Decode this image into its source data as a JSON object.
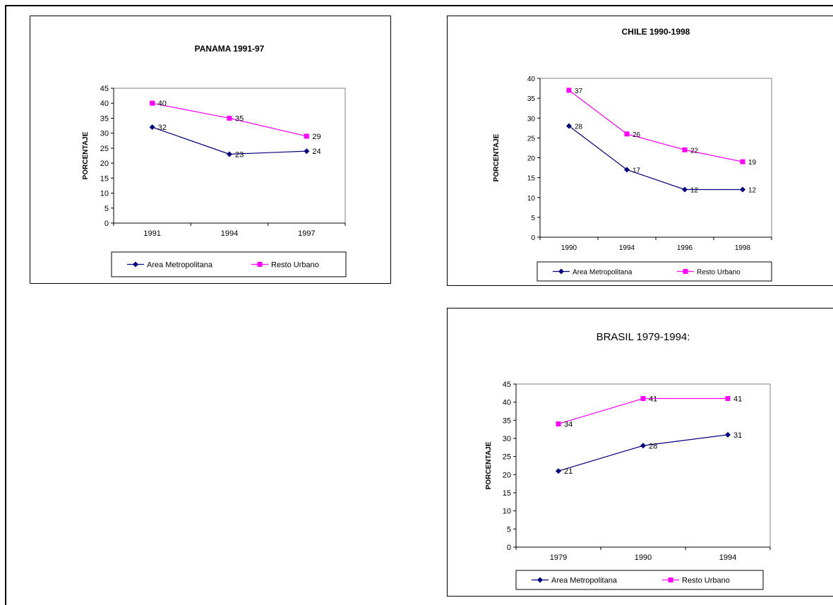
{
  "chart_data": [
    {
      "type": "line",
      "title": "PANAMA 1991-97",
      "ylabel": "PORCENTAJE",
      "xlabel": "",
      "categories": [
        "1991",
        "1994",
        "1997"
      ],
      "ylim": [
        0,
        45
      ],
      "ystep": 5,
      "grid": false,
      "legend_position": "bottom",
      "series": [
        {
          "name": "Area Metropolitana",
          "values": [
            32,
            23,
            24
          ],
          "color": "#000080",
          "marker": "diamond",
          "labels": [
            "32",
            "23",
            "24"
          ]
        },
        {
          "name": "Resto Urbano",
          "values": [
            40,
            35,
            29
          ],
          "color": "#FF00FF",
          "marker": "square",
          "labels": [
            "40",
            "35",
            "29"
          ]
        }
      ]
    },
    {
      "type": "line",
      "title": "CHILE 1990-1998",
      "ylabel": "PORCENTAJE",
      "xlabel": "",
      "categories": [
        "1990",
        "1994",
        "1996",
        "1998"
      ],
      "ylim": [
        0,
        40
      ],
      "ystep": 5,
      "grid": false,
      "legend_position": "bottom",
      "series": [
        {
          "name": "Area Metropolitana",
          "values": [
            28,
            17,
            12,
            12
          ],
          "color": "#000080",
          "marker": "diamond",
          "labels": [
            "28",
            "17",
            "12",
            "12"
          ]
        },
        {
          "name": "Resto Urbano",
          "values": [
            37,
            26,
            22,
            19
          ],
          "color": "#FF00FF",
          "marker": "square",
          "labels": [
            "37",
            "26",
            "22",
            "19"
          ]
        }
      ]
    },
    {
      "type": "line",
      "title": "BRASIL 1979-1994:",
      "ylabel": "PORCENTAJE",
      "xlabel": "",
      "categories": [
        "1979",
        "1990",
        "1994"
      ],
      "ylim": [
        0,
        45
      ],
      "ystep": 5,
      "grid": false,
      "legend_position": "bottom",
      "series": [
        {
          "name": "Area Metropolitana",
          "values": [
            21,
            28,
            31
          ],
          "color": "#000080",
          "marker": "diamond",
          "labels": [
            "21",
            "28",
            "31"
          ]
        },
        {
          "name": "Resto Urbano",
          "values": [
            34,
            41,
            41
          ],
          "color": "#FF00FF",
          "marker": "square",
          "labels": [
            "34",
            "41",
            "41"
          ]
        }
      ]
    }
  ]
}
